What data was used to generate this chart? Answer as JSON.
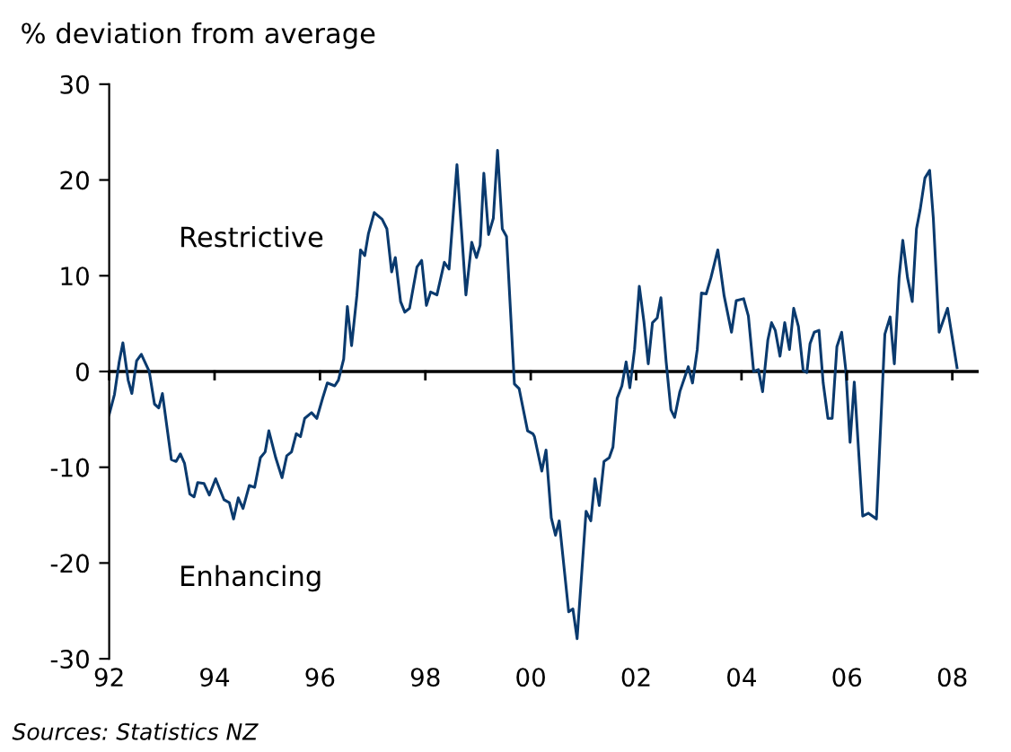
{
  "chart_data": {
    "type": "line",
    "ylabel": "% deviation from average",
    "annotations": [
      "Restrictive",
      "Enhancing",
      "Sources: Statistics NZ"
    ],
    "x": [
      1992.0,
      1992.1,
      1992.19,
      1992.26,
      1992.36,
      1992.43,
      1992.52,
      1992.61,
      1992.76,
      1992.86,
      1992.94,
      1993.01,
      1993.18,
      1993.27,
      1993.35,
      1993.43,
      1993.53,
      1993.61,
      1993.68,
      1993.8,
      1993.9,
      1994.02,
      1994.18,
      1994.28,
      1994.36,
      1994.45,
      1994.54,
      1994.66,
      1994.76,
      1994.87,
      1994.96,
      1995.03,
      1995.16,
      1995.28,
      1995.37,
      1995.46,
      1995.55,
      1995.63,
      1995.71,
      1995.84,
      1995.94,
      1996.05,
      1996.14,
      1996.28,
      1996.35,
      1996.45,
      1996.52,
      1996.6,
      1996.7,
      1996.77,
      1996.85,
      1996.92,
      1997.03,
      1997.18,
      1997.27,
      1997.36,
      1997.43,
      1997.53,
      1997.61,
      1997.7,
      1997.84,
      1997.93,
      1998.02,
      1998.1,
      1998.22,
      1998.36,
      1998.45,
      1998.6,
      1998.77,
      1998.88,
      1998.97,
      1999.04,
      1999.11,
      1999.2,
      1999.29,
      1999.37,
      1999.46,
      1999.54,
      1999.69,
      1999.78,
      1999.94,
      2000.04,
      2000.07,
      2000.21,
      2000.29,
      2000.39,
      2000.47,
      2000.54,
      2000.72,
      2000.8,
      2000.88,
      2001.05,
      2001.14,
      2001.22,
      2001.3,
      2001.39,
      2001.49,
      2001.56,
      2001.64,
      2001.73,
      2001.81,
      2001.88,
      2001.97,
      2002.06,
      2002.15,
      2002.23,
      2002.31,
      2002.4,
      2002.47,
      2002.57,
      2002.66,
      2002.73,
      2002.83,
      2002.99,
      2003.07,
      2003.16,
      2003.24,
      2003.33,
      2003.42,
      2003.55,
      2003.67,
      2003.81,
      2003.9,
      2004.04,
      2004.13,
      2004.23,
      2004.32,
      2004.4,
      2004.5,
      2004.57,
      2004.64,
      2004.73,
      2004.82,
      2004.91,
      2004.99,
      2005.08,
      2005.17,
      2005.24,
      2005.3,
      2005.38,
      2005.47,
      2005.55,
      2005.64,
      2005.72,
      2005.81,
      2005.9,
      2005.98,
      2006.06,
      2006.14,
      2006.3,
      2006.41,
      2006.56,
      2006.72,
      2006.82,
      2006.9,
      2006.99,
      2007.06,
      2007.15,
      2007.24,
      2007.32,
      2007.39,
      2007.48,
      2007.57,
      2007.64,
      2007.75,
      2007.91,
      2008.09
    ],
    "series": [
      {
        "color": "#0a3a6e",
        "values": [
          -4.5,
          -2.4,
          1.0,
          3.0,
          -0.9,
          -2.3,
          1.1,
          1.8,
          0,
          -3.4,
          -3.8,
          -2.3,
          -9.2,
          -9.4,
          -8.6,
          -9.6,
          -12.8,
          -13.1,
          -11.6,
          -11.7,
          -12.9,
          -11.2,
          -13.4,
          -13.7,
          -15.4,
          -13.2,
          -14.3,
          -11.9,
          -12.1,
          -9.0,
          -8.4,
          -6.2,
          -9.0,
          -11.1,
          -8.8,
          -8.4,
          -6.5,
          -6.8,
          -4.9,
          -4.3,
          -4.9,
          -2.8,
          -1.2,
          -1.5,
          -0.9,
          1.3,
          6.8,
          2.7,
          7.9,
          12.7,
          12.1,
          14.4,
          16.6,
          15.9,
          14.9,
          10.4,
          11.9,
          7.3,
          6.2,
          6.6,
          10.9,
          11.6,
          6.9,
          8.3,
          8.0,
          11.4,
          10.7,
          21.6,
          8.0,
          13.5,
          11.9,
          13.2,
          20.7,
          14.3,
          16.0,
          23.1,
          14.9,
          14.1,
          -1.3,
          -1.8,
          -6.2,
          -6.5,
          -6.8,
          -10.4,
          -8.2,
          -15.3,
          -17.1,
          -15.6,
          -25.1,
          -24.8,
          -27.9,
          -14.6,
          -15.6,
          -11.2,
          -14.0,
          -9.4,
          -9.0,
          -7.9,
          -2.8,
          -1.5,
          1.0,
          -1.7,
          2.3,
          8.9,
          5.1,
          0.8,
          5.1,
          5.6,
          7.7,
          1.0,
          -4.0,
          -4.8,
          -2.1,
          0.5,
          -1.2,
          2.3,
          8.2,
          8.1,
          9.8,
          12.7,
          7.9,
          4.1,
          7.4,
          7.6,
          5.8,
          0,
          0.2,
          -2.1,
          3.3,
          5.1,
          4.3,
          1.6,
          5.1,
          2.3,
          6.6,
          4.7,
          0.1,
          -0.1,
          2.9,
          4.1,
          4.3,
          -1.2,
          -4.9,
          -4.9,
          2.6,
          4.1,
          0.1,
          -7.4,
          -1.1,
          -15.1,
          -14.8,
          -15.4,
          3.9,
          5.7,
          0.8,
          9.8,
          13.7,
          9.8,
          7.3,
          14.9,
          16.9,
          20.2,
          21.0,
          16.0,
          4.1,
          6.6,
          0.4
        ]
      }
    ],
    "xlim": [
      1992,
      2008.5
    ],
    "xticks": [
      {
        "value": 1992,
        "label": "92"
      },
      {
        "value": 1994,
        "label": "94"
      },
      {
        "value": 1996,
        "label": "96"
      },
      {
        "value": 1998,
        "label": "98"
      },
      {
        "value": 2000,
        "label": "00"
      },
      {
        "value": 2002,
        "label": "02"
      },
      {
        "value": 2004,
        "label": "04"
      },
      {
        "value": 2006,
        "label": "06"
      },
      {
        "value": 2008,
        "label": "08"
      }
    ],
    "ylim": [
      -30,
      30
    ],
    "yticks": [
      -30,
      -20,
      -10,
      0,
      10,
      20,
      30
    ],
    "ref_lines": [
      {
        "axis": "y",
        "value": 0,
        "color": "#000000"
      }
    ],
    "grid": false,
    "legend": false
  }
}
